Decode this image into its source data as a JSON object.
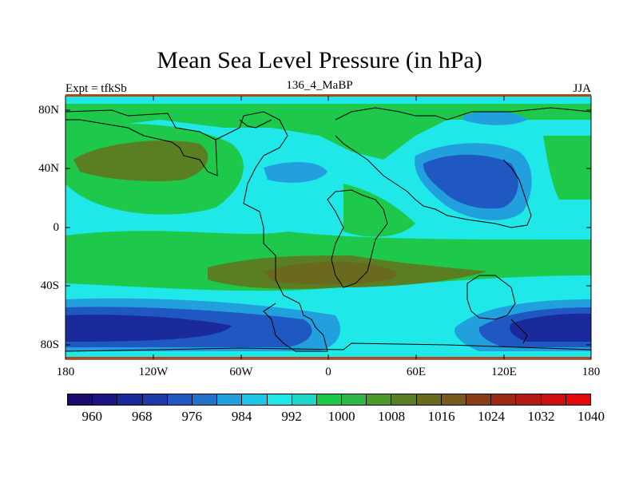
{
  "title": "Mean Sea Level Pressure (in hPa)",
  "left_label": "Expt = tfkSb",
  "center_label": "136_4_MaBP",
  "right_label": "JJA",
  "lat_ticks": [
    "80N",
    "40N",
    "0",
    "40S",
    "80S"
  ],
  "lon_ticks": [
    "180",
    "120W",
    "60W",
    "0",
    "60E",
    "120E",
    "180"
  ],
  "colorbar": {
    "colors": [
      "#1a0a6e",
      "#1b1483",
      "#1a2a9a",
      "#1e3ca8",
      "#1e58c0",
      "#2172c8",
      "#22a0de",
      "#1fc4e8",
      "#20e8e8",
      "#1ed5c8",
      "#1ec84a",
      "#32b84a",
      "#4c9a2a",
      "#5a7e22",
      "#6a6a1e",
      "#7a5a1c",
      "#8a3e18",
      "#9a2a14",
      "#b21a14",
      "#cc1010",
      "#e00a0a"
    ],
    "labels": [
      "960",
      "968",
      "976",
      "984",
      "992",
      "1000",
      "1008",
      "1016",
      "1024",
      "1032",
      "1040"
    ]
  },
  "colors": {
    "ocean_base": "#20e8e8",
    "high_green": "#1ec84a",
    "higher": "#4c9a2a",
    "highest": "#6a6a1e",
    "low_blue": "#22a0de",
    "lower_blue": "#1e58c0",
    "lowest_blue": "#1a2a9a"
  }
}
